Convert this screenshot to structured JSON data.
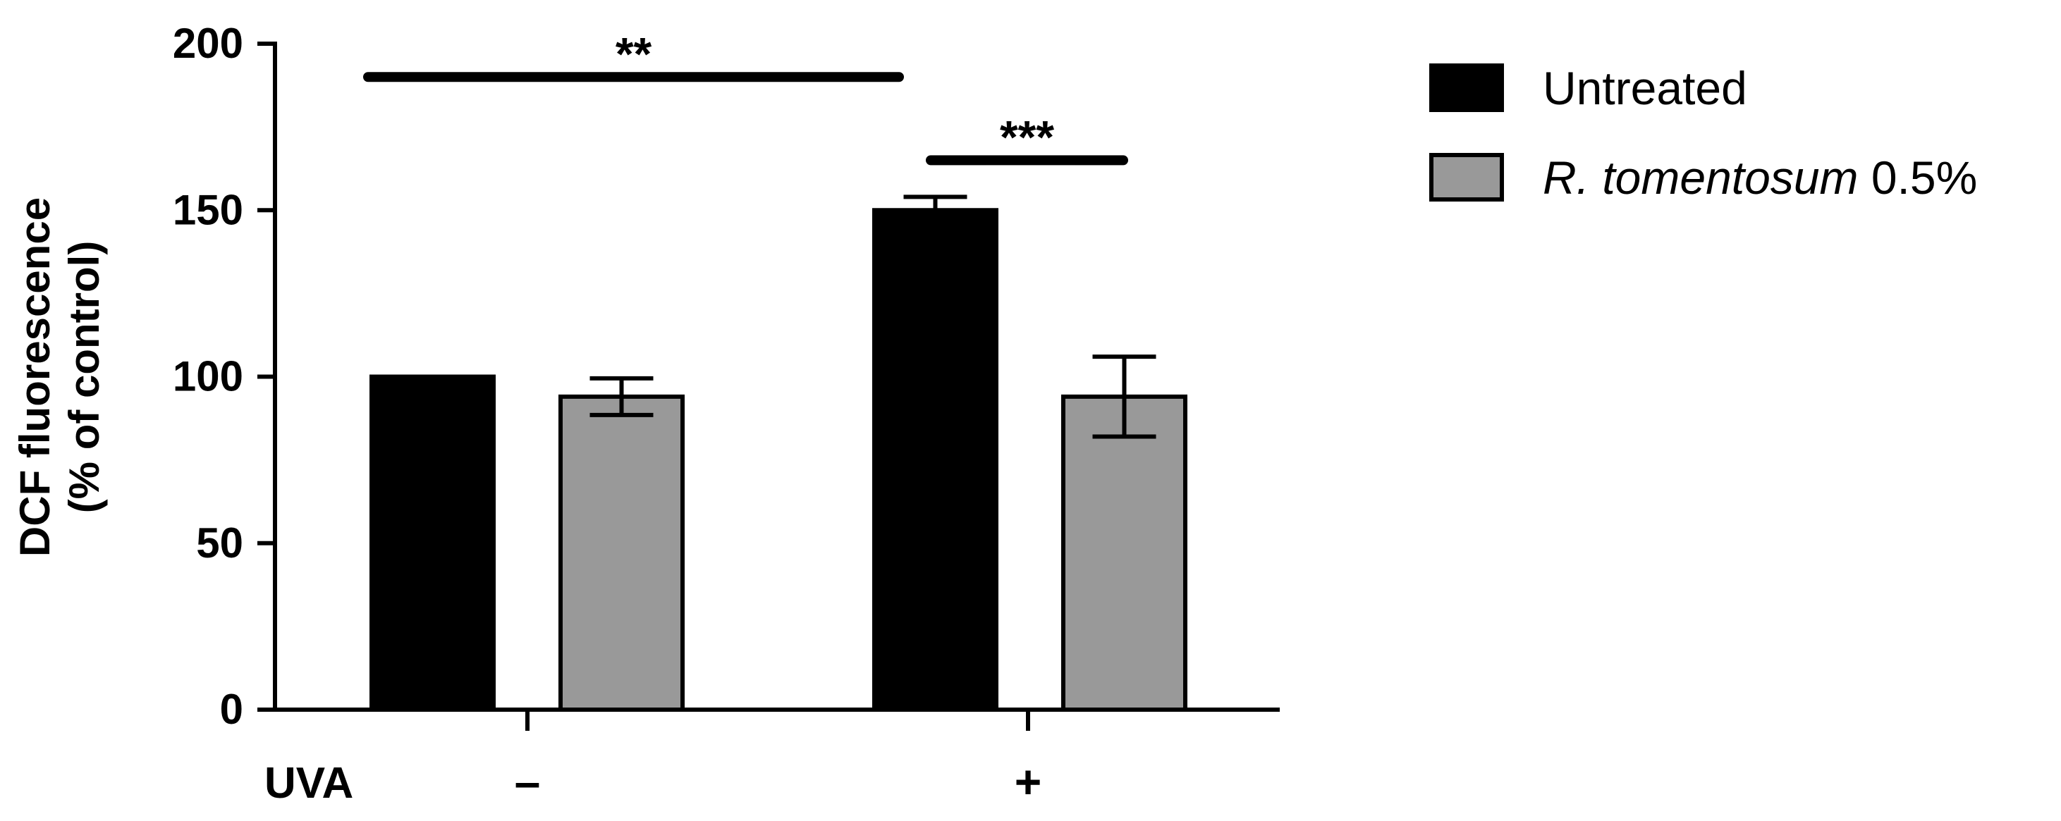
{
  "chart_data": {
    "type": "bar",
    "ylabel_line1": "DCF fluorescence",
    "ylabel_line2": "(% of control)",
    "ylim": [
      0,
      200
    ],
    "yticks": [
      0,
      50,
      100,
      150,
      200
    ],
    "xaxis_label": "UVA",
    "categories": [
      "–",
      "+"
    ],
    "series": [
      {
        "name": "Untreated",
        "values": [
          100,
          150
        ],
        "errors": [
          0,
          4
        ],
        "color": "#000000"
      },
      {
        "name_italic": "R. tomentosum",
        "name_rest": " 0.5%",
        "values": [
          94,
          94
        ],
        "errors": [
          5.5,
          12
        ],
        "color": "#999999"
      }
    ],
    "significance": [
      {
        "label": "**",
        "y": 190,
        "from_bar": [
          0,
          0
        ],
        "to_bar": [
          1,
          0
        ]
      },
      {
        "label": "***",
        "y": 165,
        "from_bar": [
          1,
          0
        ],
        "to_bar": [
          1,
          1
        ]
      }
    ],
    "legend_position": "top-right"
  }
}
